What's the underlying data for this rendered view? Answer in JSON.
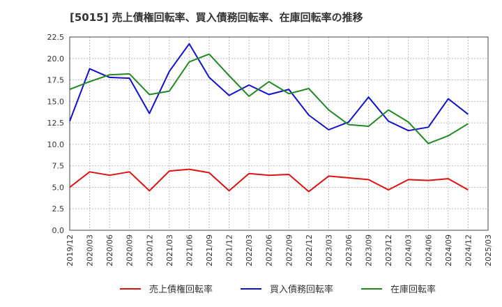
{
  "chart_data": {
    "type": "line",
    "title": "[5015]  売上債権回転率、買入債務回転率、在庫回転率の推移",
    "xlabel": "",
    "ylabel": "",
    "ylim": [
      0,
      22.5
    ],
    "yticks": [
      "0.0",
      "2.5",
      "5.0",
      "7.5",
      "10.0",
      "12.5",
      "15.0",
      "17.5",
      "20.0",
      "22.5"
    ],
    "xticks": [
      "2019/12",
      "2020/03",
      "2020/06",
      "2020/09",
      "2020/12",
      "2021/03",
      "2021/06",
      "2021/09",
      "2021/12",
      "2022/03",
      "2022/06",
      "2022/09",
      "2022/12",
      "2023/03",
      "2023/06",
      "2023/09",
      "2023/12",
      "2024/03",
      "2024/06",
      "2024/09",
      "2024/12",
      "2025/03"
    ],
    "x": [
      "2019/12",
      "2020/03",
      "2020/06",
      "2020/09",
      "2020/12",
      "2021/03",
      "2021/06",
      "2021/09",
      "2021/12",
      "2022/03",
      "2022/06",
      "2022/09",
      "2022/12",
      "2023/03",
      "2023/06",
      "2023/09",
      "2023/12",
      "2024/03",
      "2024/06",
      "2024/09",
      "2024/12"
    ],
    "grid": true,
    "legend_position": "bottom",
    "series": [
      {
        "name": "売上債権回転率",
        "color": "#dd1111",
        "values": [
          5.0,
          6.8,
          6.4,
          6.8,
          4.6,
          6.9,
          7.1,
          6.7,
          4.6,
          6.6,
          6.4,
          6.5,
          4.5,
          6.3,
          6.1,
          5.9,
          4.7,
          5.9,
          5.8,
          6.0,
          4.7
        ]
      },
      {
        "name": "買入債務回転率",
        "color": "#1111cc",
        "values": [
          12.7,
          18.8,
          17.8,
          17.7,
          13.6,
          18.5,
          21.7,
          17.8,
          15.7,
          16.9,
          15.8,
          16.4,
          13.4,
          11.7,
          12.6,
          15.5,
          12.7,
          11.6,
          12.0,
          15.3,
          13.5
        ]
      },
      {
        "name": "在庫回転率",
        "color": "#228822",
        "values": [
          16.4,
          17.3,
          18.1,
          18.2,
          15.8,
          16.2,
          19.6,
          20.5,
          18.0,
          15.6,
          17.3,
          15.9,
          16.5,
          14.0,
          12.3,
          12.1,
          14.0,
          12.6,
          10.1,
          11.0,
          12.4
        ]
      }
    ]
  }
}
